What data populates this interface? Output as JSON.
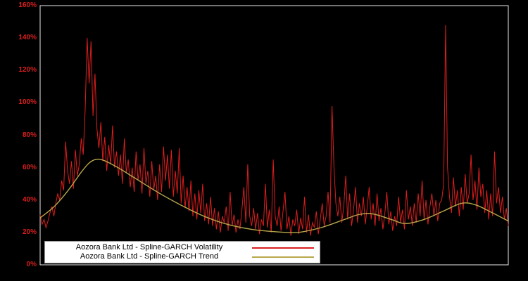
{
  "chart_data": {
    "type": "line",
    "title": "",
    "xlabel": "",
    "ylabel": "",
    "background": "#000000",
    "axis_color": "#e8e8e8",
    "tick_label_color": "#dc1e1e",
    "ylim": [
      0,
      160
    ],
    "y_ticks": [
      0,
      20,
      40,
      60,
      80,
      100,
      120,
      140,
      160
    ],
    "y_tick_suffix": "%",
    "grid": false,
    "legend_position": "bottom-left",
    "series": [
      {
        "name": "Aozora Bank Ltd - Spline-GARCH Volatility",
        "color": "#dc1e1e",
        "unit": "percent",
        "values": [
          31,
          25,
          28,
          23,
          27,
          32,
          36,
          30,
          38,
          44,
          40,
          52,
          46,
          76,
          58,
          50,
          64,
          47,
          71,
          55,
          62,
          78,
          68,
          96,
          140,
          112,
          138,
          92,
          118,
          84,
          72,
          88,
          64,
          79,
          58,
          74,
          62,
          86,
          60,
          70,
          55,
          68,
          50,
          78,
          57,
          65,
          48,
          60,
          45,
          70,
          52,
          62,
          44,
          72,
          50,
          58,
          42,
          64,
          46,
          55,
          40,
          62,
          45,
          73,
          52,
          68,
          47,
          71,
          42,
          58,
          44,
          72,
          38,
          55,
          35,
          48,
          33,
          52,
          30,
          44,
          28,
          46,
          32,
          50,
          27,
          38,
          25,
          42,
          24,
          35,
          22,
          33,
          20,
          30,
          26,
          36,
          21,
          45,
          24,
          31,
          20,
          28,
          22,
          34,
          48,
          26,
          62,
          30,
          24,
          35,
          22,
          32,
          19,
          28,
          24,
          50,
          23,
          34,
          20,
          65,
          30,
          24,
          36,
          21,
          33,
          45,
          22,
          30,
          18,
          28,
          24,
          34,
          19,
          29,
          22,
          42,
          20,
          31,
          18,
          26,
          23,
          33,
          19,
          28,
          38,
          24,
          30,
          45,
          26,
          98,
          60,
          38,
          30,
          42,
          26,
          36,
          55,
          28,
          44,
          24,
          34,
          48,
          26,
          38,
          30,
          42,
          25,
          36,
          48,
          28,
          38,
          24,
          44,
          27,
          35,
          22,
          32,
          45,
          25,
          33,
          21,
          30,
          24,
          42,
          26,
          34,
          22,
          46,
          28,
          36,
          24,
          38,
          26,
          44,
          30,
          52,
          28,
          40,
          25,
          36,
          44,
          30,
          40,
          27,
          38,
          40,
          50,
          148,
          60,
          42,
          32,
          54,
          36,
          46,
          30,
          48,
          34,
          56,
          38,
          44,
          68,
          40,
          52,
          34,
          60,
          42,
          50,
          32,
          46,
          28,
          44,
          30,
          70,
          38,
          48,
          32,
          42,
          28,
          35,
          24
        ]
      },
      {
        "name": "Aozora Bank Ltd - Spline-GARCH Trend",
        "color": "#b8a84a",
        "unit": "percent",
        "keypoints": [
          [
            0.0,
            29
          ],
          [
            0.03,
            36
          ],
          [
            0.06,
            46
          ],
          [
            0.09,
            58
          ],
          [
            0.11,
            64
          ],
          [
            0.13,
            65
          ],
          [
            0.16,
            61
          ],
          [
            0.2,
            54
          ],
          [
            0.25,
            45
          ],
          [
            0.3,
            37
          ],
          [
            0.35,
            30
          ],
          [
            0.4,
            25
          ],
          [
            0.45,
            22
          ],
          [
            0.5,
            20.5
          ],
          [
            0.55,
            20
          ],
          [
            0.6,
            23
          ],
          [
            0.65,
            28
          ],
          [
            0.68,
            31
          ],
          [
            0.71,
            31.5
          ],
          [
            0.75,
            28
          ],
          [
            0.78,
            25.5
          ],
          [
            0.82,
            28
          ],
          [
            0.86,
            33
          ],
          [
            0.9,
            38
          ],
          [
            0.93,
            37
          ],
          [
            0.96,
            33
          ],
          [
            1.0,
            27
          ]
        ]
      }
    ]
  }
}
